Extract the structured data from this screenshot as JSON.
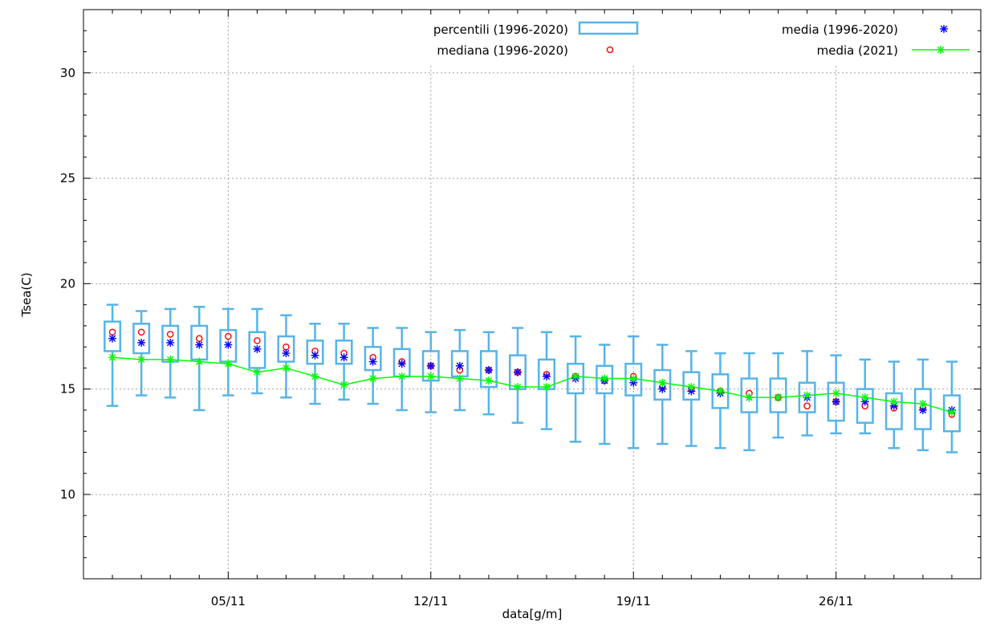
{
  "chart_data": {
    "type": "box",
    "xlabel": "data[g/m]",
    "ylabel": "Tsea(C)",
    "xlim": [
      0,
      31
    ],
    "ylim": [
      6,
      33
    ],
    "yticks": [
      10,
      15,
      20,
      25,
      30
    ],
    "xticks": [
      {
        "x": 5,
        "label": "05/11"
      },
      {
        "x": 12,
        "label": "12/11"
      },
      {
        "x": 19,
        "label": "19/11"
      },
      {
        "x": 26,
        "label": "26/11"
      }
    ],
    "grid": true,
    "legend_position": "top",
    "colors": {
      "box": "#56b4e9",
      "media": "#0000ff",
      "mediana": "#ff0000",
      "media2021": "#00ff00",
      "grid": "#a0a0a0"
    },
    "series": [
      {
        "name": "percentili (1996-2020)",
        "kind": "box"
      },
      {
        "name": "mediana (1996-2020)",
        "kind": "points"
      },
      {
        "name": "media (1996-2020)",
        "kind": "points"
      },
      {
        "name": "media (2021)",
        "kind": "line"
      }
    ],
    "days": [
      1,
      2,
      3,
      4,
      5,
      6,
      7,
      8,
      9,
      10,
      11,
      12,
      13,
      14,
      15,
      16,
      17,
      18,
      19,
      20,
      21,
      22,
      23,
      24,
      25,
      26,
      27,
      28,
      29,
      30
    ],
    "whisker_low": [
      14.2,
      14.7,
      14.6,
      14.0,
      14.7,
      14.8,
      14.6,
      14.3,
      14.5,
      14.3,
      14.0,
      13.9,
      14.0,
      13.8,
      13.4,
      13.1,
      12.5,
      12.4,
      12.2,
      12.4,
      12.3,
      12.2,
      12.1,
      12.7,
      12.8,
      12.9,
      12.9,
      12.2,
      12.1,
      12.0
    ],
    "q1": [
      16.8,
      16.7,
      16.3,
      16.4,
      16.3,
      16.0,
      16.3,
      16.2,
      16.2,
      15.9,
      15.6,
      15.4,
      15.6,
      15.1,
      15.0,
      15.0,
      14.8,
      14.8,
      14.7,
      14.5,
      14.5,
      14.1,
      13.9,
      13.9,
      13.9,
      13.5,
      13.4,
      13.1,
      13.1,
      13.0
    ],
    "q3": [
      18.2,
      18.1,
      18.0,
      18.0,
      17.8,
      17.7,
      17.5,
      17.3,
      17.3,
      17.0,
      16.9,
      16.8,
      16.8,
      16.8,
      16.6,
      16.4,
      16.2,
      16.1,
      16.2,
      15.9,
      15.8,
      15.7,
      15.5,
      15.5,
      15.3,
      15.3,
      15.0,
      14.8,
      15.0,
      14.7
    ],
    "whisker_high": [
      19.0,
      18.7,
      18.8,
      18.9,
      18.8,
      18.8,
      18.5,
      18.1,
      18.1,
      17.9,
      17.9,
      17.7,
      17.8,
      17.7,
      17.9,
      17.7,
      17.5,
      17.1,
      17.5,
      17.1,
      16.8,
      16.7,
      16.7,
      16.7,
      16.8,
      16.6,
      16.4,
      16.3,
      16.4,
      16.3
    ],
    "mediana": [
      17.7,
      17.7,
      17.6,
      17.4,
      17.5,
      17.3,
      17.0,
      16.8,
      16.7,
      16.5,
      16.3,
      16.1,
      15.9,
      15.9,
      15.8,
      15.7,
      15.6,
      15.4,
      15.6,
      15.1,
      15.0,
      14.9,
      14.8,
      14.6,
      14.2,
      14.4,
      14.2,
      14.1,
      14.1,
      13.8
    ],
    "media": [
      17.4,
      17.2,
      17.2,
      17.1,
      17.1,
      16.9,
      16.7,
      16.6,
      16.5,
      16.3,
      16.2,
      16.1,
      16.1,
      15.9,
      15.8,
      15.6,
      15.5,
      15.4,
      15.3,
      15.0,
      14.9,
      14.8,
      14.6,
      14.6,
      14.6,
      14.4,
      14.4,
      14.2,
      14.0,
      14.0
    ],
    "media_2021": [
      16.5,
      16.4,
      16.4,
      16.3,
      16.2,
      15.8,
      16.0,
      15.6,
      15.2,
      15.5,
      15.6,
      15.6,
      15.5,
      15.4,
      15.1,
      15.1,
      15.6,
      15.5,
      15.5,
      15.3,
      15.1,
      14.9,
      14.6,
      14.6,
      14.7,
      14.8,
      14.6,
      14.4,
      14.3,
      13.9
    ]
  }
}
